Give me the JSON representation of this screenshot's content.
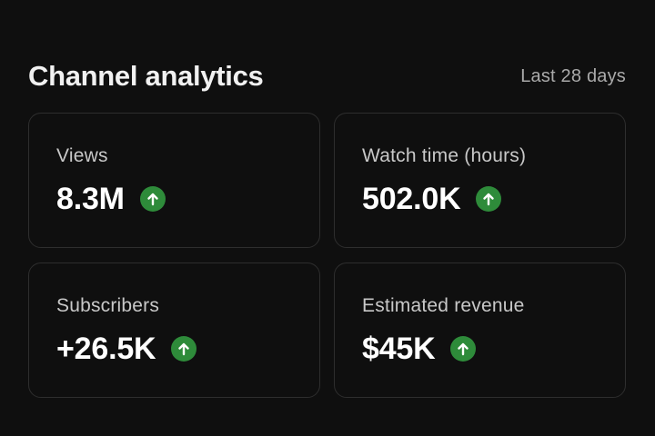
{
  "header": {
    "title": "Channel analytics",
    "period": "Last 28 days"
  },
  "metrics": [
    {
      "label": "Views",
      "value": "8.3M",
      "trend_icon": "arrow-up-icon",
      "trend_color": "#2e8b3a"
    },
    {
      "label": "Watch time (hours)",
      "value": "502.0K",
      "trend_icon": "arrow-up-icon",
      "trend_color": "#2e8b3a"
    },
    {
      "label": "Subscribers",
      "value": "+26.5K",
      "trend_icon": "arrow-up-icon",
      "trend_color": "#2e8b3a"
    },
    {
      "label": "Estimated revenue",
      "value": "$45K",
      "trend_icon": "arrow-up-icon",
      "trend_color": "#2e8b3a"
    }
  ],
  "colors": {
    "background": "#0f0f0f",
    "card_border": "#2e2e2e",
    "trend_up": "#2e8b3a"
  }
}
